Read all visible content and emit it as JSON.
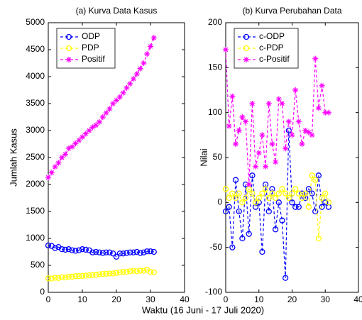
{
  "chart_data": [
    {
      "type": "line",
      "title": "(a) Kurva Data Kasus",
      "y_label": "Jumlah Kasus",
      "x_label": "Waktu (16 Juni - 17 Juli 2020)",
      "xlim": [
        0,
        40
      ],
      "xticks": [
        0,
        10,
        20,
        30,
        40
      ],
      "ylim": [
        0,
        5000
      ],
      "yticks": [
        0,
        500,
        1000,
        1500,
        2000,
        2500,
        3000,
        3500,
        4000,
        4500,
        5000
      ],
      "legend": "upper left",
      "x": [
        0,
        1,
        2,
        3,
        4,
        5,
        6,
        7,
        8,
        9,
        10,
        11,
        12,
        13,
        14,
        15,
        16,
        17,
        18,
        19,
        20,
        21,
        22,
        23,
        24,
        25,
        26,
        27,
        28,
        29,
        30,
        31
      ],
      "series": [
        {
          "name": "ODP",
          "color": "#0000ff",
          "marker": "circle",
          "values": [
            870,
            860,
            820,
            840,
            800,
            790,
            800,
            780,
            770,
            780,
            800,
            790,
            780,
            740,
            750,
            740,
            730,
            740,
            740,
            720,
            660,
            720,
            720,
            730,
            740,
            740,
            750,
            730,
            740,
            760,
            760,
            750
          ]
        },
        {
          "name": "PDP",
          "color": "#ffff00",
          "marker": "circle",
          "values": [
            260,
            255,
            270,
            265,
            280,
            275,
            290,
            290,
            300,
            300,
            305,
            310,
            315,
            320,
            325,
            335,
            340,
            345,
            350,
            350,
            360,
            370,
            380,
            380,
            390,
            400,
            390,
            400,
            400,
            420,
            380,
            370
          ]
        },
        {
          "name": "Positif",
          "color": "#ff00ff",
          "marker": "star",
          "values": [
            2130,
            2220,
            2330,
            2400,
            2500,
            2560,
            2670,
            2700,
            2760,
            2820,
            2880,
            2940,
            3000,
            3060,
            3100,
            3160,
            3250,
            3330,
            3400,
            3500,
            3560,
            3620,
            3700,
            3790,
            3870,
            3960,
            4050,
            4150,
            4250,
            4420,
            4560,
            4720
          ]
        }
      ]
    },
    {
      "type": "line",
      "title": "(b) Kurva Perubahan Data",
      "y_label": "Nilai",
      "xlim": [
        0,
        40
      ],
      "xticks": [
        0,
        10,
        20,
        30,
        40
      ],
      "ylim": [
        -100,
        200
      ],
      "yticks": [
        -100,
        -50,
        0,
        50,
        100,
        150,
        200
      ],
      "legend": "upper left",
      "x": [
        0,
        1,
        2,
        3,
        4,
        5,
        6,
        7,
        8,
        9,
        10,
        11,
        12,
        13,
        14,
        15,
        16,
        17,
        18,
        19,
        20,
        21,
        22,
        23,
        24,
        25,
        26,
        27,
        28,
        29,
        30,
        31
      ],
      "series": [
        {
          "name": "c-ODP",
          "color": "#0000ff",
          "marker": "circle",
          "values": [
            -10,
            -5,
            -50,
            25,
            -10,
            -40,
            20,
            -35,
            30,
            -5,
            0,
            -55,
            20,
            -10,
            15,
            -30,
            0,
            -20,
            -84,
            80,
            0,
            -5,
            -5,
            10,
            5,
            15,
            10,
            -10,
            30,
            -5,
            0,
            -5
          ]
        },
        {
          "name": "c-PDP",
          "color": "#ffff00",
          "marker": "circle",
          "values": [
            15,
            5,
            10,
            5,
            10,
            0,
            5,
            15,
            10,
            0,
            5,
            10,
            15,
            5,
            10,
            5,
            10,
            15,
            10,
            5,
            10,
            15,
            10,
            5,
            10,
            -5,
            30,
            25,
            -40,
            5,
            10,
            0
          ]
        },
        {
          "name": "c-Positif",
          "color": "#ff00ff",
          "marker": "star",
          "values": [
            170,
            85,
            118,
            65,
            80,
            95,
            90,
            20,
            110,
            40,
            55,
            75,
            40,
            110,
            65,
            45,
            115,
            110,
            60,
            90,
            75,
            125,
            90,
            65,
            80,
            78,
            75,
            160,
            105,
            130,
            100,
            100
          ]
        }
      ]
    }
  ]
}
